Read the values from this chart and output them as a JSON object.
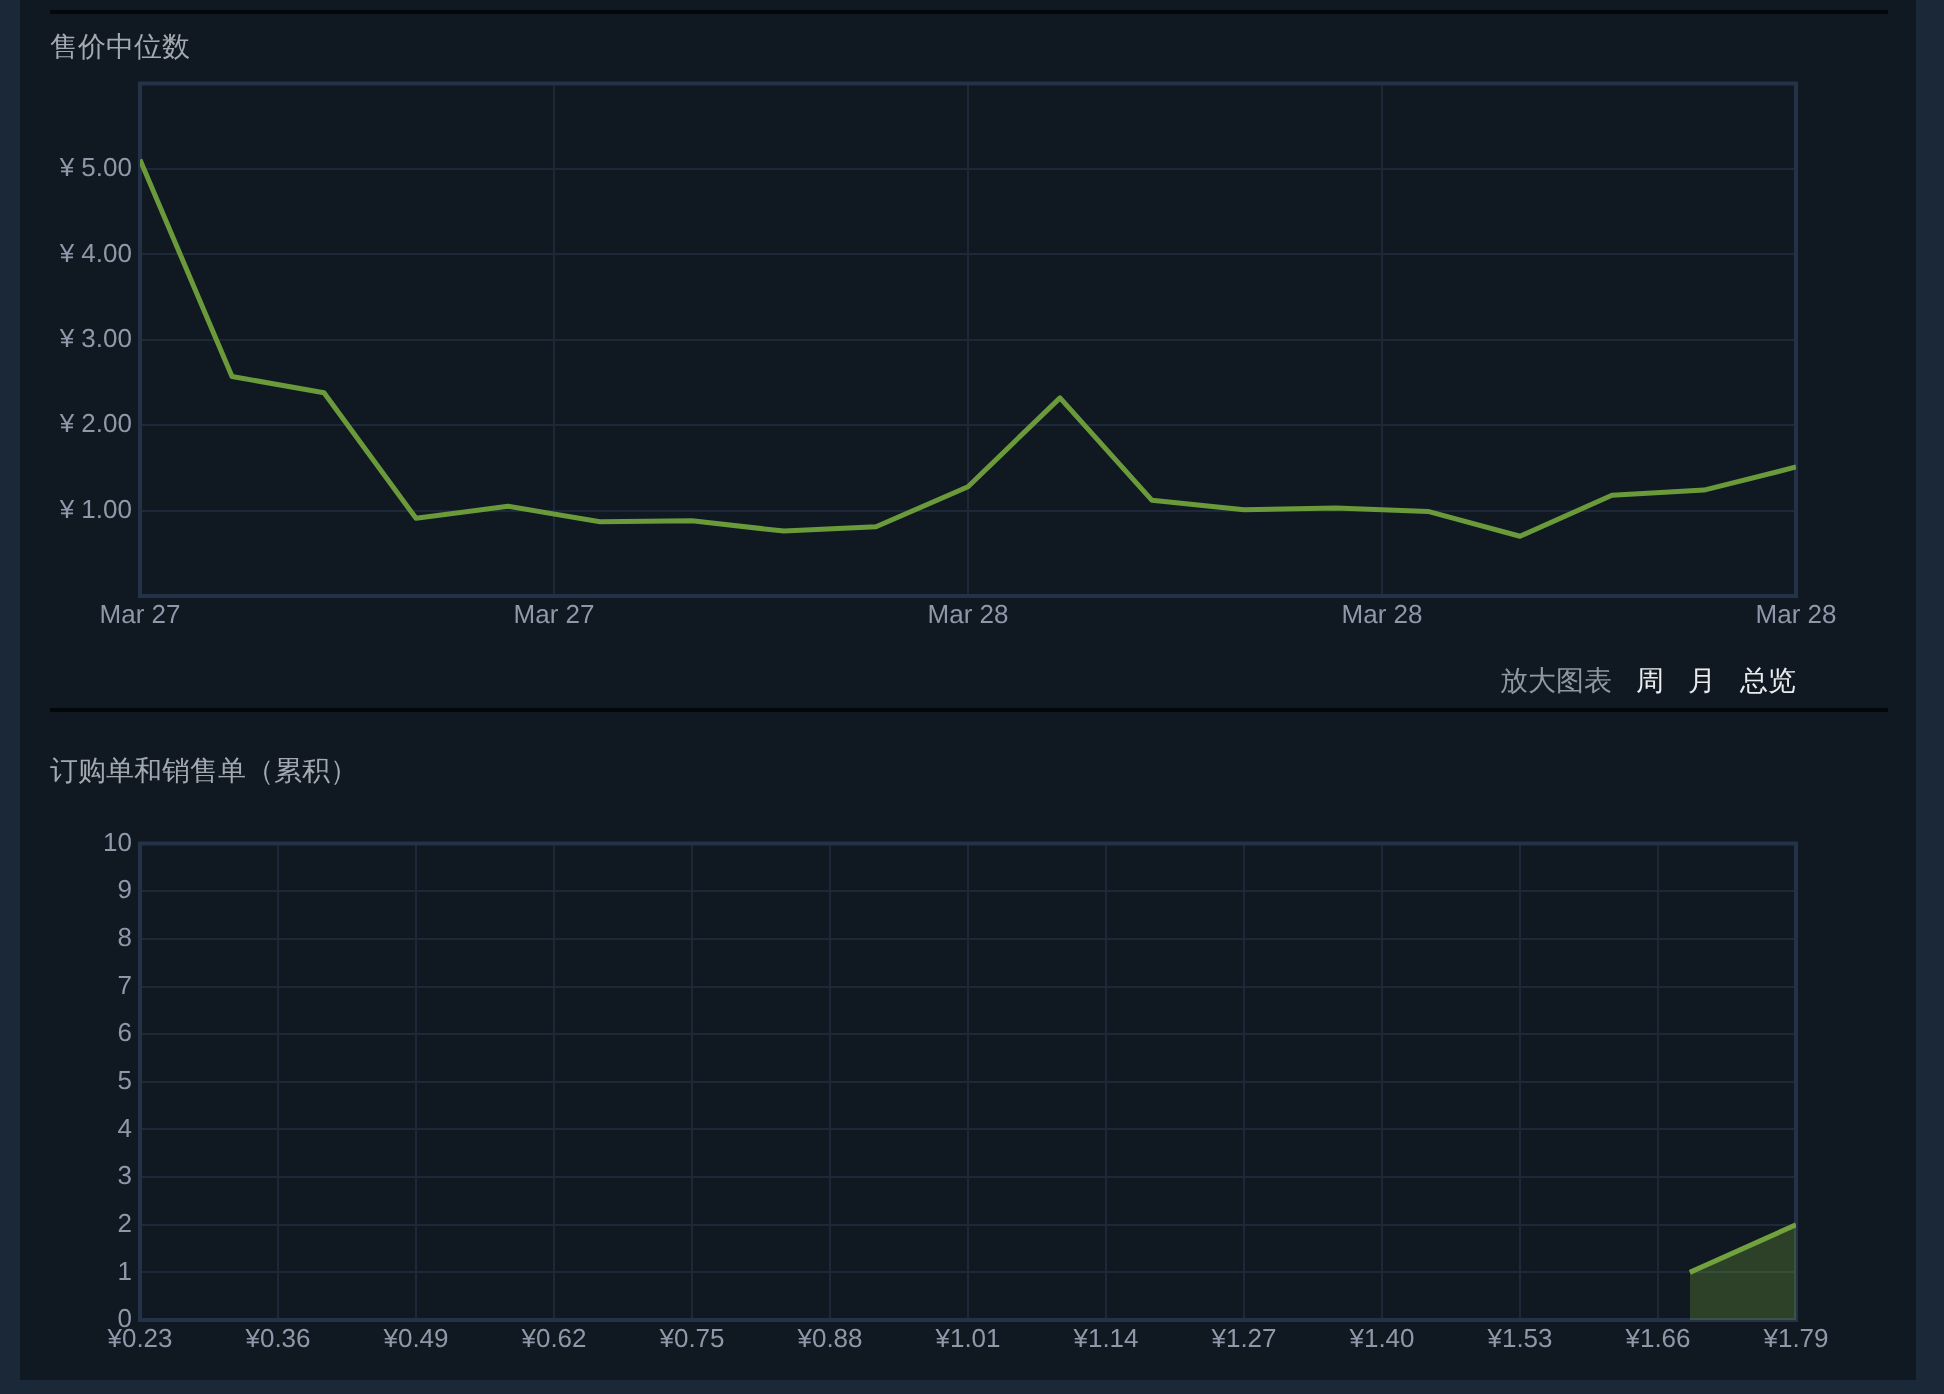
{
  "chart_data": [
    {
      "type": "line",
      "title": "售价中位数",
      "x": [
        "--03-27T16:00",
        "--03-27T17:00",
        "--03-27T18:00",
        "--03-27T19:00",
        "--03-27T20:00",
        "--03-27T21:00",
        "--03-27T22:00",
        "--03-27T23:00",
        "--03-28T00:00",
        "--03-28T01:00",
        "--03-28T02:00",
        "--03-28T03:00",
        "--03-28T04:00",
        "--03-28T05:00",
        "--03-28T06:00",
        "--03-28T07:00",
        "--03-28T08:00",
        "--03-28T09:00",
        "--03-28T10:00"
      ],
      "values": [
        5.11,
        2.57,
        2.38,
        0.91,
        1.05,
        0.87,
        0.88,
        0.76,
        0.81,
        1.28,
        2.32,
        1.12,
        1.01,
        1.03,
        0.99,
        0.7,
        1.18,
        1.24,
        1.51
      ],
      "color": "#6b9a3a",
      "xlim": [
        "--03-27T16:00",
        "--03-28T10:00"
      ],
      "xticks": [
        {
          "value": "--03-27T16:00",
          "label": "Mar 27"
        },
        {
          "value": "--03-27T20:30",
          "label": "Mar 27"
        },
        {
          "value": "--03-28T01:00",
          "label": "Mar 28"
        },
        {
          "value": "--03-28T05:30",
          "label": "Mar 28"
        },
        {
          "value": "--03-28T10:00",
          "label": "Mar 28"
        }
      ],
      "ylim": [
        0,
        6
      ],
      "yticks": [
        {
          "value": 1,
          "label": "¥ 1.00"
        },
        {
          "value": 2,
          "label": "¥ 2.00"
        },
        {
          "value": 3,
          "label": "¥ 3.00"
        },
        {
          "value": 4,
          "label": "¥ 4.00"
        },
        {
          "value": 5,
          "label": "¥ 5.00"
        }
      ],
      "grid": true,
      "marker": "none",
      "annotations": [
        "放大图表",
        "周",
        "月",
        "总览"
      ]
    },
    {
      "type": "area",
      "title": "订购单和销售单（累积）",
      "x": [
        1.69,
        1.79
      ],
      "values": [
        1,
        2
      ],
      "color": "#72a23d",
      "xlim": [
        0.23,
        1.79
      ],
      "xticks": [
        {
          "value": 0.23,
          "label": "¥0.23"
        },
        {
          "value": 0.36,
          "label": "¥0.36"
        },
        {
          "value": 0.49,
          "label": "¥0.49"
        },
        {
          "value": 0.62,
          "label": "¥0.62"
        },
        {
          "value": 0.75,
          "label": "¥0.75"
        },
        {
          "value": 0.88,
          "label": "¥0.88"
        },
        {
          "value": 1.01,
          "label": "¥1.01"
        },
        {
          "value": 1.14,
          "label": "¥1.14"
        },
        {
          "value": 1.27,
          "label": "¥1.27"
        },
        {
          "value": 1.4,
          "label": "¥1.40"
        },
        {
          "value": 1.53,
          "label": "¥1.53"
        },
        {
          "value": 1.66,
          "label": "¥1.66"
        },
        {
          "value": 1.79,
          "label": "¥1.79"
        }
      ],
      "ylim": [
        0,
        10
      ],
      "yticks": [
        0,
        1,
        2,
        3,
        4,
        5,
        6,
        7,
        8,
        9,
        10
      ],
      "grid": true,
      "marker": "none"
    }
  ]
}
